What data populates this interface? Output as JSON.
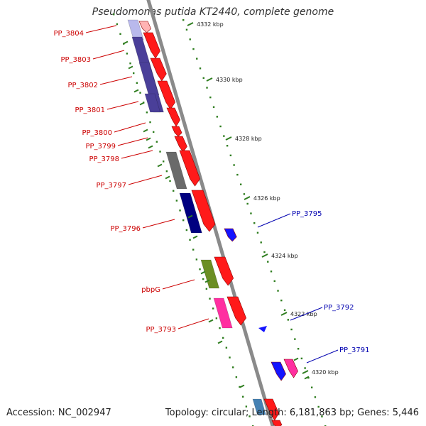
{
  "title": "Pseudomonas putida KT2440, complete genome",
  "footer": {
    "accession": "Accession: NC_002947",
    "topology": "Topology: circular; Length: 6,181,863 bp; Genes: 5,446"
  },
  "colors": {
    "backbone": "#808080",
    "tick": "#2e7d1e",
    "forward_gene": "#ff1a1a",
    "reverse_gene": "#1414ff",
    "left_label": "#cc0000",
    "right_label": "#0000b0"
  },
  "ticks": [
    "4332 kbp",
    "4330 kbp",
    "4328 kbp",
    "4326 kbp",
    "4324 kbp",
    "4322 kbp",
    "4320 kbp"
  ],
  "left_labels": [
    "PP_3804",
    "PP_3803",
    "PP_3802",
    "PP_3801",
    "PP_3800",
    "PP_3799",
    "PP_3798",
    "PP_3797",
    "PP_3796",
    "pbpG",
    "PP_3793"
  ],
  "right_labels": [
    "PP_3795",
    "PP_3792",
    "PP_3791"
  ]
}
